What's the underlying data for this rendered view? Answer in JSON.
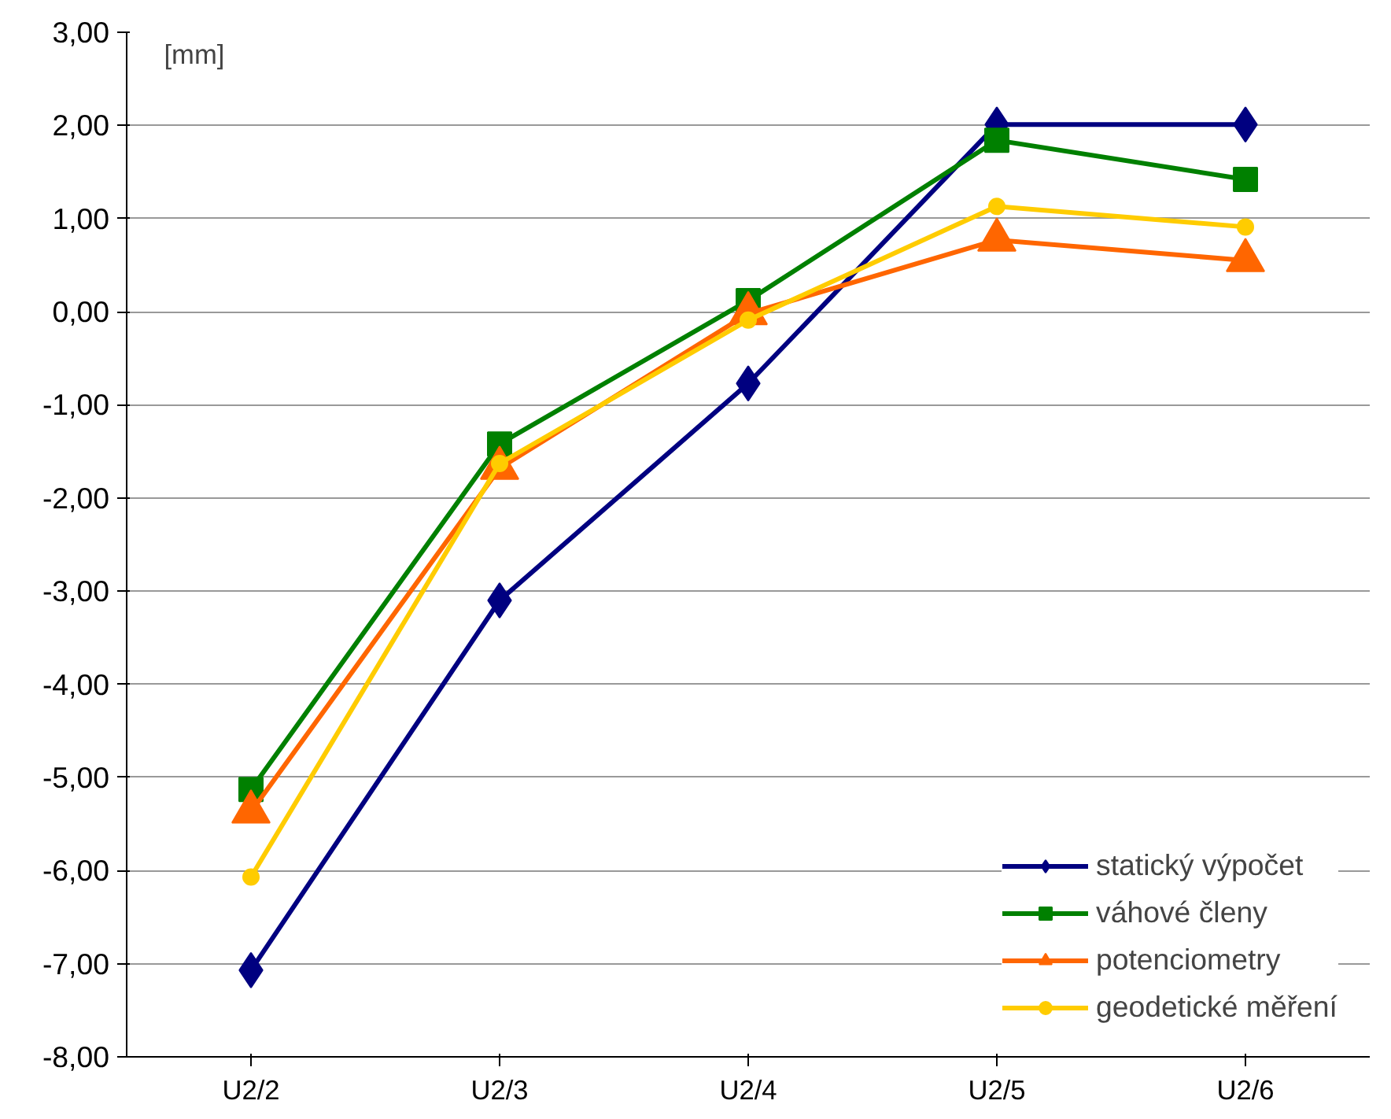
{
  "chart_data": {
    "type": "line",
    "ylabel": "[mm]",
    "categories": [
      "U2/2",
      "U2/3",
      "U2/4",
      "U2/5",
      "U2/6"
    ],
    "series": [
      {
        "name": "statický výpočet",
        "color": "#000080",
        "marker": "diamond",
        "values": [
          -7.07,
          -3.1,
          -0.77,
          2.01,
          2.01
        ]
      },
      {
        "name": "váhové členy",
        "color": "#008000",
        "marker": "square",
        "values": [
          -5.13,
          -1.42,
          0.12,
          1.84,
          1.42
        ]
      },
      {
        "name": "potenciometry",
        "color": "#ff6600",
        "marker": "triangle",
        "values": [
          -5.37,
          -1.68,
          -0.02,
          0.77,
          0.55
        ]
      },
      {
        "name": "geodetické měření",
        "color": "#ffcc00",
        "marker": "circle",
        "values": [
          -6.07,
          -1.63,
          -0.09,
          1.13,
          0.91
        ]
      }
    ],
    "ylim": [
      -8,
      3
    ],
    "yticks": [
      {
        "value": -8,
        "label": "-8,00"
      },
      {
        "value": -7,
        "label": "-7,00"
      },
      {
        "value": -6,
        "label": "-6,00"
      },
      {
        "value": -5,
        "label": "-5,00"
      },
      {
        "value": -4,
        "label": "-4,00"
      },
      {
        "value": -3,
        "label": "-3,00"
      },
      {
        "value": -2,
        "label": "-2,00"
      },
      {
        "value": -1,
        "label": "-1,00"
      },
      {
        "value": 0,
        "label": "0,00"
      },
      {
        "value": 1,
        "label": "1,00"
      },
      {
        "value": 2,
        "label": "2,00"
      },
      {
        "value": 3,
        "label": "3,00"
      }
    ],
    "grid": "y",
    "legend": "bottom right",
    "line_style": "solid"
  }
}
